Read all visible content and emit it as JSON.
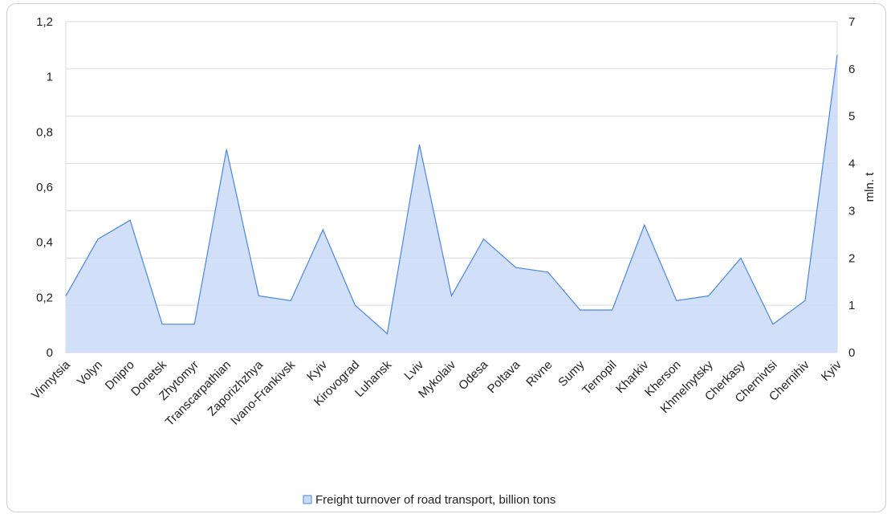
{
  "chart_data": {
    "type": "area",
    "categories": [
      "Vinnytsia",
      "Volyn",
      "Dnipro",
      "Donetsk",
      "Zhytomyr",
      "Transcarpathian",
      "Zaporizhzhya",
      "Ivano-Frankivsk",
      "Kyiv",
      "Kirovograd",
      "Luhansk",
      "Lviv",
      "Mykolaiv",
      "Odesa",
      "Poltava",
      "Rivne",
      "Sumy",
      "Ternopil",
      "Kharkiv",
      "Kherson",
      "Khmelnytsky",
      "Cherkasy",
      "Chernivtsi",
      "Chernihiv",
      "Kyiv"
    ],
    "series": [
      {
        "name": "Freight turnover of road transport, billion tons",
        "axis": "right",
        "values": [
          1.2,
          2.4,
          2.8,
          0.6,
          0.6,
          4.3,
          1.2,
          1.1,
          2.6,
          1.0,
          0.4,
          4.4,
          1.2,
          2.4,
          1.8,
          1.7,
          0.9,
          0.9,
          2.7,
          1.1,
          1.2,
          2.0,
          0.6,
          1.1,
          6.3
        ]
      }
    ],
    "left_axis": {
      "ticks": [
        "0",
        "0,2",
        "0,4",
        "0,6",
        "0,8",
        "1",
        "1,2"
      ],
      "ylim": [
        0,
        1.2
      ]
    },
    "right_axis": {
      "ticks": [
        "0",
        "1",
        "2",
        "3",
        "4",
        "5",
        "6",
        "7"
      ],
      "ylim": [
        0,
        7
      ],
      "label": "mln. t"
    },
    "grid": true,
    "legend_position": "bottom",
    "colors": {
      "fill": "#c9dbf7",
      "line": "#4a86e8",
      "grid": "#d9d9d9"
    }
  }
}
